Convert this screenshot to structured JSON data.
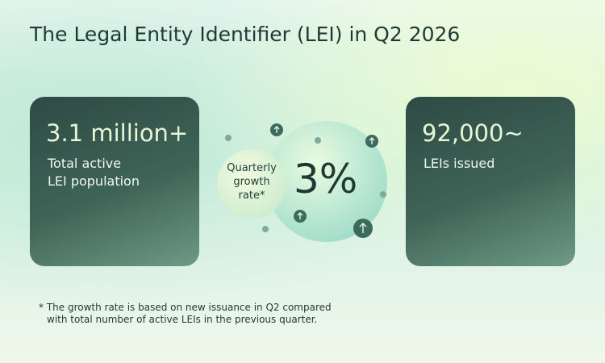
{
  "header": {
    "title": "The Legal Entity Identifier (LEI) in Q2 2026"
  },
  "cards": [
    {
      "value": "3.1 million+",
      "label_lines": [
        "Total active",
        "LEI population"
      ]
    },
    {
      "value": "92,000~",
      "label_lines": [
        "LEIs issued"
      ]
    }
  ],
  "bubble": {
    "label_lines": [
      "Quarterly",
      "growth",
      "rate*"
    ],
    "value": "3%"
  },
  "footnote": {
    "lines": [
      "* The growth rate is based on new issuance in Q2 compared",
      "with total number of active LEIs in the previous quarter."
    ]
  }
}
